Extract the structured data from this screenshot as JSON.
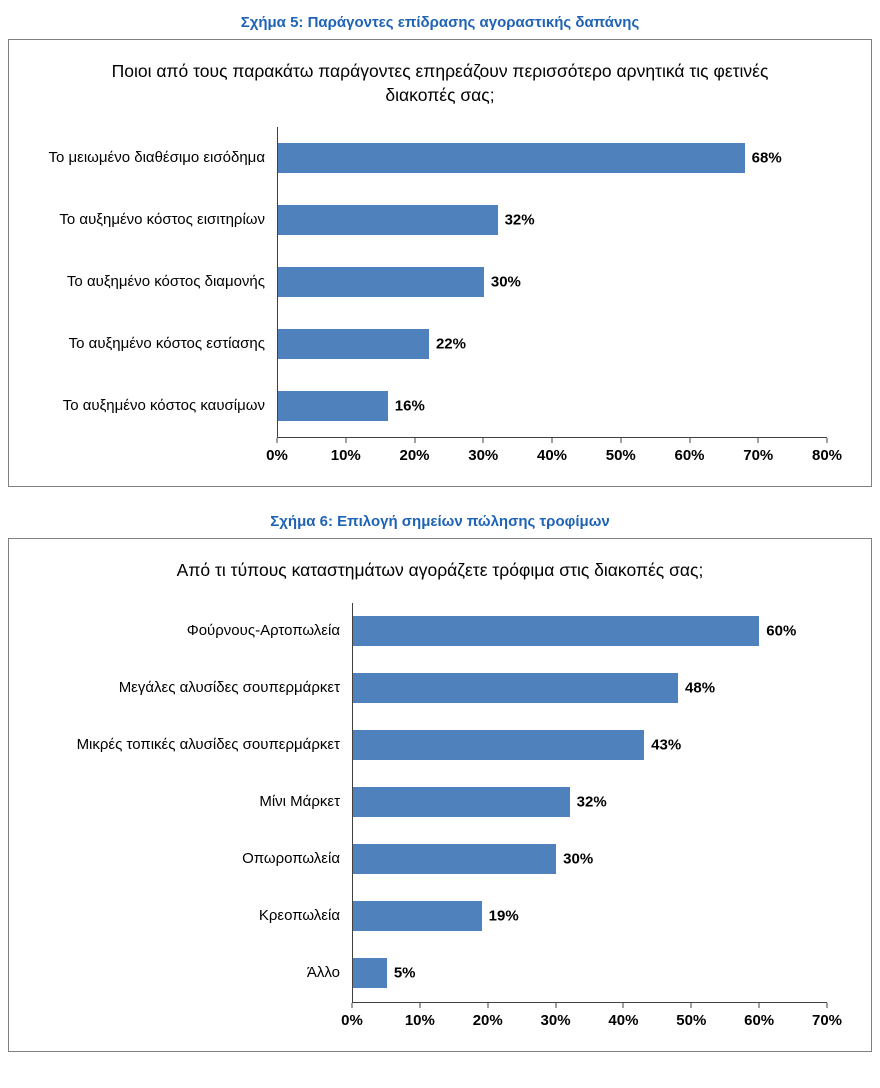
{
  "chart_data": [
    {
      "type": "bar",
      "orientation": "horizontal",
      "caption": "Σχήμα 5: Παράγοντες επίδρασης αγοραστικής δαπάνης",
      "title": "Ποιοι από τους παρακάτω παράγοντες επηρεάζουν περισσότερο αρνητικά τις φετινές διακοπές σας;",
      "categories": [
        "Το μειωμένο διαθέσιμο εισόδημα",
        "Το αυξημένο κόστος εισιτηρίων",
        "Το αυξημένο κόστος διαμονής",
        "Το αυξημένο κόστος εστίασης",
        "Το αυξημένο κόστος καυσίμων"
      ],
      "values": [
        68,
        32,
        30,
        22,
        16
      ],
      "value_labels": [
        "68%",
        "32%",
        "30%",
        "22%",
        "16%"
      ],
      "xlim": [
        0,
        80
      ],
      "xticks": [
        "0%",
        "10%",
        "20%",
        "30%",
        "40%",
        "50%",
        "60%",
        "70%",
        "80%"
      ],
      "bar_color": "#4f81bd",
      "grid": false,
      "legend": "none"
    },
    {
      "type": "bar",
      "orientation": "horizontal",
      "caption": "Σχήμα 6: Επιλογή σημείων πώλησης τροφίμων",
      "title": "Από τι τύπους καταστημάτων αγοράζετε τρόφιμα στις διακοπές σας;",
      "categories": [
        "Φούρνους-Αρτοπωλεία",
        "Μεγάλες αλυσίδες σουπερμάρκετ",
        "Μικρές τοπικές αλυσίδες σουπερμάρκετ",
        "Μίνι Μάρκετ",
        "Οπωροπωλεία",
        "Κρεοπωλεία",
        "Άλλο"
      ],
      "values": [
        60,
        48,
        43,
        32,
        30,
        19,
        5
      ],
      "value_labels": [
        "60%",
        "48%",
        "43%",
        "32%",
        "30%",
        "19%",
        "5%"
      ],
      "xlim": [
        0,
        70
      ],
      "xticks": [
        "0%",
        "10%",
        "20%",
        "30%",
        "40%",
        "50%",
        "60%",
        "70%"
      ],
      "bar_color": "#4f81bd",
      "grid": false,
      "legend": "none"
    }
  ]
}
